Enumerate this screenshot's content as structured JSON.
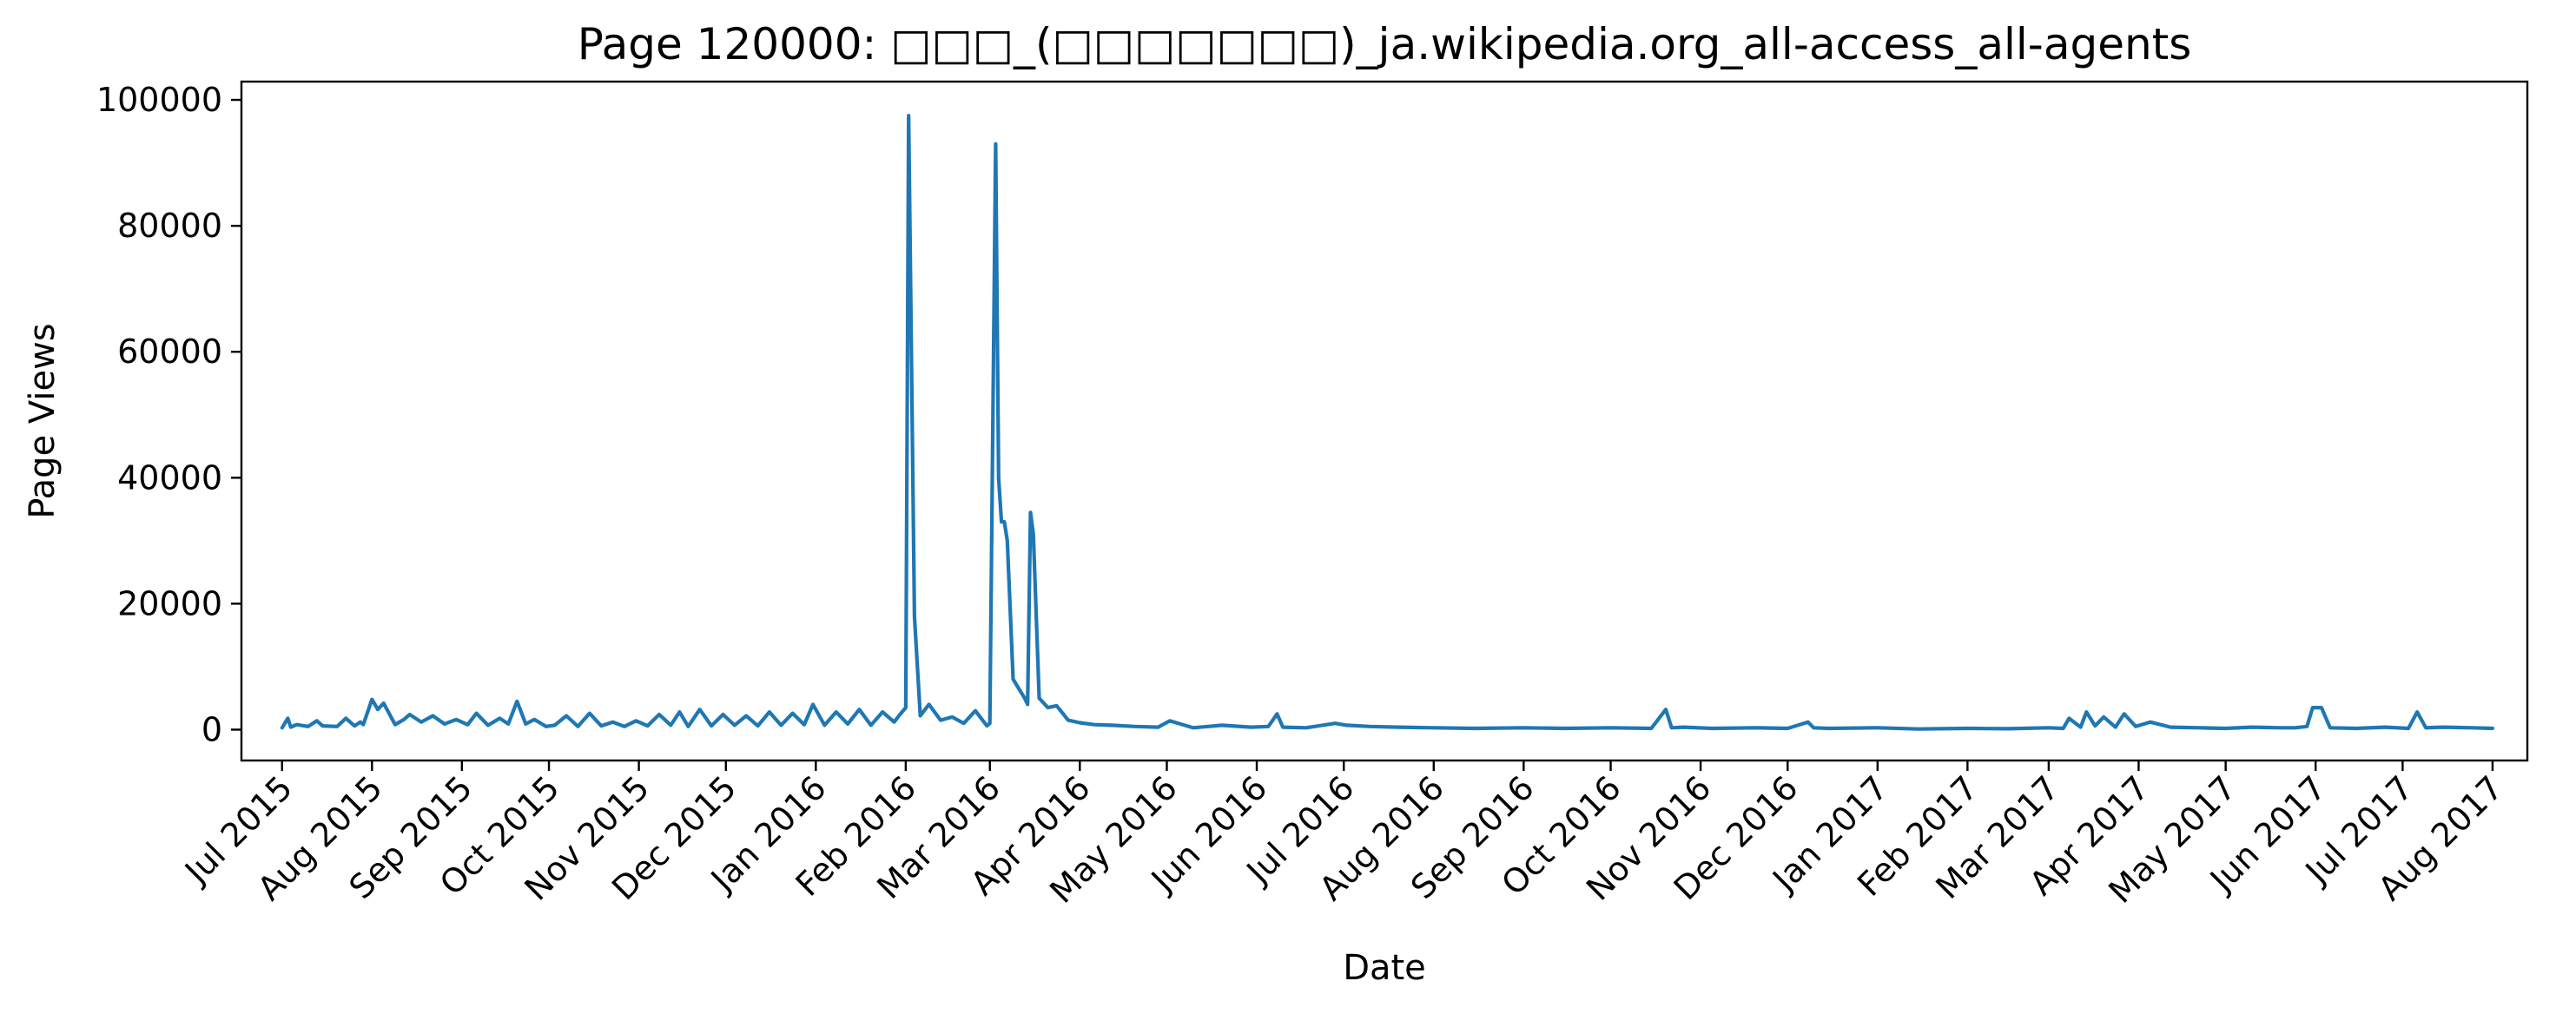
{
  "chart_data": {
    "type": "line",
    "title": "Page 120000: □□□_(□□□□□□□)_ja.wikipedia.org_all-access_all-agents",
    "xlabel": "Date",
    "ylabel": "Page Views",
    "xlim": [
      "2015-06-17",
      "2017-08-13"
    ],
    "ylim": [
      -4900,
      102900
    ],
    "grid": false,
    "legend": "none",
    "line_color": "#1f77b4",
    "x_ticks": [
      "2015-07-01",
      "2015-08-01",
      "2015-09-01",
      "2015-10-01",
      "2015-11-01",
      "2015-12-01",
      "2016-01-01",
      "2016-02-01",
      "2016-03-01",
      "2016-04-01",
      "2016-05-01",
      "2016-06-01",
      "2016-07-01",
      "2016-08-01",
      "2016-09-01",
      "2016-10-01",
      "2016-11-01",
      "2016-12-01",
      "2017-01-01",
      "2017-02-01",
      "2017-03-01",
      "2017-04-01",
      "2017-05-01",
      "2017-06-01",
      "2017-07-01",
      "2017-08-01"
    ],
    "x_tick_labels": [
      "Jul 2015",
      "Aug 2015",
      "Sep 2015",
      "Oct 2015",
      "Nov 2015",
      "Dec 2015",
      "Jan 2016",
      "Feb 2016",
      "Mar 2016",
      "Apr 2016",
      "May 2016",
      "Jun 2016",
      "Jul 2016",
      "Aug 2016",
      "Sep 2016",
      "Oct 2016",
      "Nov 2016",
      "Dec 2016",
      "Jan 2017",
      "Feb 2017",
      "Mar 2017",
      "Apr 2017",
      "May 2017",
      "Jun 2017",
      "Jul 2017",
      "Aug 2017"
    ],
    "y_ticks": [
      0,
      20000,
      40000,
      60000,
      80000,
      100000
    ],
    "y_tick_labels": [
      "0",
      "20000",
      "40000",
      "60000",
      "80000",
      "100000"
    ],
    "series": [
      {
        "x": [
          "2015-07-01",
          "2015-07-03",
          "2015-07-04",
          "2015-07-06",
          "2015-07-10",
          "2015-07-13",
          "2015-07-15",
          "2015-07-20",
          "2015-07-23",
          "2015-07-26",
          "2015-07-28",
          "2015-07-29",
          "2015-08-01",
          "2015-08-03",
          "2015-08-05",
          "2015-08-09",
          "2015-08-12",
          "2015-08-14",
          "2015-08-18",
          "2015-08-22",
          "2015-08-26",
          "2015-08-30",
          "2015-09-03",
          "2015-09-06",
          "2015-09-10",
          "2015-09-14",
          "2015-09-17",
          "2015-09-20",
          "2015-09-23",
          "2015-09-26",
          "2015-09-30",
          "2015-10-03",
          "2015-10-07",
          "2015-10-11",
          "2015-10-15",
          "2015-10-19",
          "2015-10-23",
          "2015-10-27",
          "2015-10-31",
          "2015-11-04",
          "2015-11-08",
          "2015-11-12",
          "2015-11-15",
          "2015-11-18",
          "2015-11-22",
          "2015-11-26",
          "2015-11-30",
          "2015-12-04",
          "2015-12-08",
          "2015-12-12",
          "2015-12-16",
          "2015-12-20",
          "2015-12-24",
          "2015-12-28",
          "2015-12-31",
          "2016-01-04",
          "2016-01-08",
          "2016-01-12",
          "2016-01-16",
          "2016-01-20",
          "2016-01-24",
          "2016-01-28",
          "2016-01-30",
          "2016-02-01",
          "2016-02-02",
          "2016-02-04",
          "2016-02-06",
          "2016-02-09",
          "2016-02-13",
          "2016-02-17",
          "2016-02-21",
          "2016-02-25",
          "2016-02-29",
          "2016-03-01",
          "2016-03-03",
          "2016-03-04",
          "2016-03-05",
          "2016-03-06",
          "2016-03-07",
          "2016-03-09",
          "2016-03-11",
          "2016-03-13",
          "2016-03-14",
          "2016-03-15",
          "2016-03-16",
          "2016-03-18",
          "2016-03-21",
          "2016-03-24",
          "2016-03-28",
          "2016-04-01",
          "2016-04-06",
          "2016-04-12",
          "2016-04-20",
          "2016-04-28",
          "2016-05-02",
          "2016-05-10",
          "2016-05-20",
          "2016-05-30",
          "2016-06-05",
          "2016-06-08",
          "2016-06-10",
          "2016-06-18",
          "2016-06-28",
          "2016-07-02",
          "2016-07-10",
          "2016-07-20",
          "2016-08-01",
          "2016-08-15",
          "2016-09-01",
          "2016-09-15",
          "2016-10-01",
          "2016-10-15",
          "2016-10-20",
          "2016-10-22",
          "2016-10-26",
          "2016-11-05",
          "2016-11-20",
          "2016-12-01",
          "2016-12-08",
          "2016-12-10",
          "2016-12-15",
          "2017-01-01",
          "2017-01-15",
          "2017-02-01",
          "2017-02-15",
          "2017-03-01",
          "2017-03-06",
          "2017-03-08",
          "2017-03-12",
          "2017-03-14",
          "2017-03-17",
          "2017-03-20",
          "2017-03-24",
          "2017-03-27",
          "2017-03-31",
          "2017-04-02",
          "2017-04-05",
          "2017-04-12",
          "2017-04-22",
          "2017-05-01",
          "2017-05-10",
          "2017-05-20",
          "2017-05-25",
          "2017-05-29",
          "2017-05-31",
          "2017-06-03",
          "2017-06-06",
          "2017-06-15",
          "2017-06-25",
          "2017-07-03",
          "2017-07-06",
          "2017-07-09",
          "2017-07-15",
          "2017-07-25",
          "2017-08-01"
        ],
        "y": [
          300,
          1800,
          400,
          800,
          500,
          1400,
          600,
          500,
          1800,
          600,
          1200,
          800,
          4800,
          3200,
          4200,
          800,
          1600,
          2400,
          1200,
          2200,
          900,
          1600,
          800,
          2600,
          700,
          1800,
          900,
          4500,
          900,
          1600,
          500,
          700,
          2200,
          500,
          2600,
          600,
          1200,
          500,
          1400,
          600,
          2400,
          700,
          2800,
          500,
          3200,
          600,
          2400,
          700,
          2200,
          600,
          2800,
          700,
          2600,
          800,
          4000,
          700,
          2800,
          900,
          3200,
          700,
          2800,
          1200,
          2400,
          3500,
          97500,
          18000,
          2200,
          4000,
          1500,
          2000,
          1000,
          3000,
          600,
          1000,
          93000,
          40000,
          33000,
          33000,
          30000,
          8000,
          6500,
          5000,
          4000,
          34500,
          31000,
          5000,
          3500,
          3800,
          1500,
          1100,
          800,
          700,
          500,
          400,
          1400,
          300,
          700,
          400,
          500,
          2500,
          400,
          300,
          1000,
          700,
          500,
          400,
          300,
          200,
          300,
          200,
          300,
          200,
          3200,
          300,
          400,
          200,
          300,
          200,
          1200,
          300,
          200,
          300,
          100,
          200,
          150,
          300,
          200,
          1800,
          400,
          2800,
          600,
          2000,
          400,
          2500,
          500,
          800,
          1200,
          400,
          300,
          200,
          400,
          300,
          300,
          500,
          3500,
          3500,
          300,
          200,
          400,
          200,
          2800,
          300,
          400,
          300,
          200
        ]
      }
    ]
  }
}
